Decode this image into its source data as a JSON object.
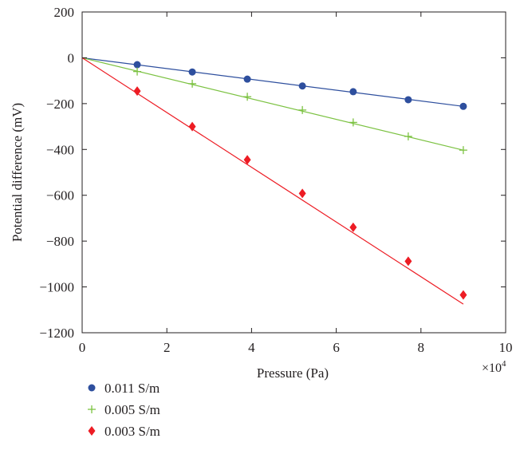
{
  "chart_data": {
    "type": "scatter",
    "xlabel": "Pressure (Pa)",
    "ylabel": "Potential difference (mV)",
    "x_scale_label": "×10",
    "x_scale_exponent": "4",
    "xlim": [
      0,
      10
    ],
    "ylim": [
      -1200,
      200
    ],
    "x_ticks": [
      "0",
      "2",
      "4",
      "6",
      "8",
      "10"
    ],
    "y_ticks": [
      "200",
      "0",
      "−200",
      "−400",
      "−600",
      "−800",
      "−1000",
      "−1200"
    ],
    "grid": false,
    "legend_position": "bottom-left",
    "series": [
      {
        "name": "0.011 S/m",
        "marker": "circle",
        "color": "#2e4f9e",
        "x": [
          1.3,
          2.6,
          3.9,
          5.2,
          6.4,
          7.7,
          9.0
        ],
        "y": [
          -30,
          -62,
          -93,
          -123,
          -148,
          -183,
          -212
        ],
        "fit_line": {
          "x": [
            0,
            9.0
          ],
          "y": [
            0,
            -212
          ]
        }
      },
      {
        "name": "0.005 S/m",
        "marker": "plus",
        "color": "#7cc242",
        "x": [
          1.3,
          2.6,
          3.9,
          5.2,
          6.4,
          7.7,
          9.0
        ],
        "y": [
          -60,
          -113,
          -170,
          -228,
          -282,
          -343,
          -403
        ],
        "fit_line": {
          "x": [
            0,
            9.0
          ],
          "y": [
            0,
            -403
          ]
        }
      },
      {
        "name": "0.003 S/m",
        "marker": "diamond",
        "color": "#ed1c24",
        "x": [
          1.3,
          2.6,
          3.9,
          5.2,
          6.4,
          7.7,
          9.0
        ],
        "y": [
          -145,
          -300,
          -445,
          -592,
          -740,
          -888,
          -1035
        ],
        "fit_line": {
          "x": [
            0,
            9.0
          ],
          "y": [
            0,
            -1075
          ]
        }
      }
    ]
  }
}
